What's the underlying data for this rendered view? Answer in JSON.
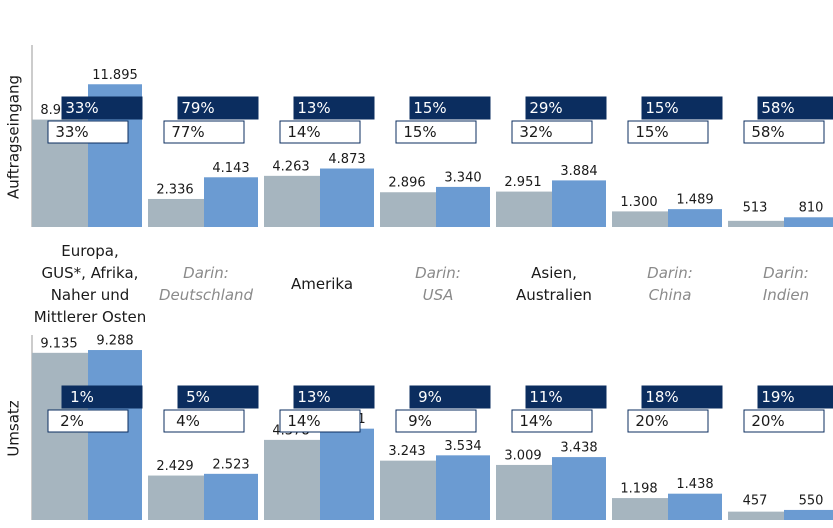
{
  "chart_data": [
    {
      "type": "bar",
      "ylabel": "Auftragseingang",
      "categories": [
        "Europa,\nGUS*, Afrika,\nNaher und\nMittlerer Osten",
        "Darin:\nDeutschland",
        "Amerika",
        "Darin:\nUSA",
        "Asien,\nAustralien",
        "Darin:\nChina",
        "Darin:\nIndien"
      ],
      "ylim": [
        0,
        15000
      ],
      "series": [
        {
          "color": "#a6b5bf",
          "values": [
            8951,
            2336,
            4263,
            2896,
            2951,
            1300,
            513
          ],
          "value_labels": [
            "8.951",
            "2.336",
            "4.263",
            "2.896",
            "2.951",
            "1.300",
            "513"
          ]
        },
        {
          "color": "#6b9bd2",
          "values": [
            11895,
            4143,
            4873,
            3340,
            3884,
            1489,
            810
          ],
          "value_labels": [
            "11.895",
            "4.143",
            "4.873",
            "3.340",
            "3.884",
            "1.489",
            "810"
          ]
        }
      ],
      "changes": [
        {
          "color": "#0b2d5f",
          "values": [
            33,
            79,
            13,
            15,
            29,
            15,
            58
          ],
          "value_labels": [
            "33%",
            "79%",
            "13%",
            "15%",
            "29%",
            "15%",
            "58%"
          ]
        },
        {
          "color": "#ffffff",
          "values": [
            33,
            77,
            14,
            15,
            32,
            15,
            58
          ],
          "value_labels": [
            "33%",
            "77%",
            "14%",
            "15%",
            "32%",
            "15%",
            "58%"
          ]
        }
      ]
    },
    {
      "type": "bar",
      "ylabel": "Umsatz",
      "ylim": [
        0,
        10000
      ],
      "series": [
        {
          "color": "#a6b5bf",
          "values": [
            9135,
            2429,
            4378,
            3243,
            3009,
            1198,
            457
          ],
          "value_labels": [
            "9.135",
            "2.429",
            "4.378",
            "3.243",
            "3.009",
            "1.198",
            "457"
          ]
        },
        {
          "color": "#6b9bd2",
          "values": [
            9288,
            2523,
            4991,
            3534,
            3438,
            1438,
            550
          ],
          "value_labels": [
            "9.288",
            "2.523",
            "4.991",
            "3.534",
            "3.438",
            "1.438",
            "550"
          ]
        }
      ],
      "changes": [
        {
          "color": "#0b2d5f",
          "values": [
            1,
            5,
            13,
            9,
            11,
            18,
            19
          ],
          "value_labels": [
            "1%",
            "5%",
            "13%",
            "9%",
            "11%",
            "18%",
            "19%"
          ]
        },
        {
          "color": "#ffffff",
          "values": [
            2,
            4,
            14,
            9,
            14,
            20,
            20
          ],
          "value_labels": [
            "2%",
            "4%",
            "14%",
            "9%",
            "14%",
            "20%",
            "20%"
          ]
        }
      ]
    }
  ]
}
